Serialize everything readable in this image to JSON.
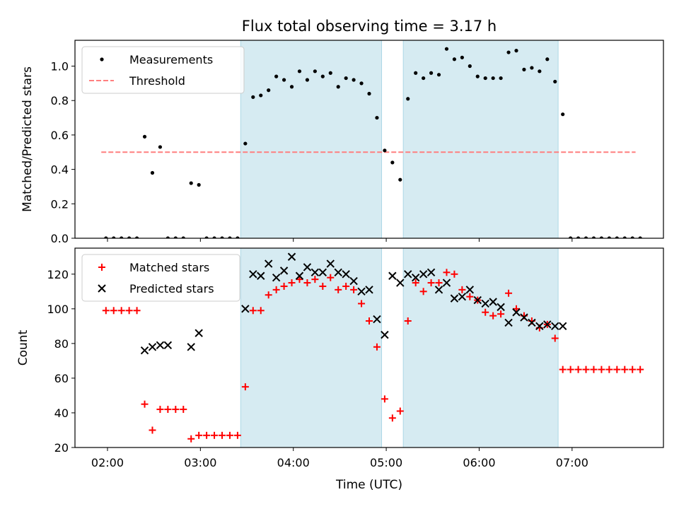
{
  "figure": {
    "title": "Flux total observing time = 3.17 h",
    "xlabel": "Time (UTC)",
    "x_ticks": [
      "02:00",
      "03:00",
      "04:00",
      "05:00",
      "06:00",
      "07:00"
    ]
  },
  "chart_data": [
    {
      "type": "scatter",
      "ylabel": "Matched/Predicted stars",
      "xlim": [
        "01:39",
        "07:59"
      ],
      "ylim": [
        0,
        1.15
      ],
      "y_ticks": [
        "0.0",
        "0.2",
        "0.4",
        "0.6",
        "0.8",
        "1.0"
      ],
      "legend_position": "top-left",
      "legend": [
        "Measurements",
        "Threshold"
      ],
      "shaded_intervals": [
        [
          "03:26",
          "04:57"
        ],
        [
          "05:11",
          "06:51"
        ]
      ],
      "threshold": {
        "name": "Threshold",
        "y": 0.5,
        "x_start": "01:56",
        "x_end": "07:41",
        "color": "#ff7f7f"
      },
      "series": [
        {
          "name": "Measurements",
          "color": "#000000",
          "x": [
            "01:59",
            "02:04",
            "02:09",
            "02:14",
            "02:19",
            "02:24",
            "02:29",
            "02:34",
            "02:39",
            "02:44",
            "02:49",
            "02:54",
            "02:59",
            "03:04",
            "03:09",
            "03:14",
            "03:19",
            "03:24",
            "03:29",
            "03:34",
            "03:39",
            "03:44",
            "03:49",
            "03:54",
            "03:59",
            "04:04",
            "04:09",
            "04:14",
            "04:19",
            "04:24",
            "04:29",
            "04:34",
            "04:39",
            "04:44",
            "04:49",
            "04:54",
            "04:59",
            "05:04",
            "05:09",
            "05:14",
            "05:19",
            "05:24",
            "05:29",
            "05:34",
            "05:39",
            "05:44",
            "05:49",
            "05:54",
            "05:59",
            "06:04",
            "06:09",
            "06:14",
            "06:19",
            "06:24",
            "06:29",
            "06:34",
            "06:39",
            "06:44",
            "06:49",
            "06:54",
            "06:59",
            "07:04",
            "07:09",
            "07:14",
            "07:19",
            "07:24",
            "07:29",
            "07:34",
            "07:39",
            "07:44"
          ],
          "y": [
            0.0,
            0.0,
            0.0,
            0.0,
            0.0,
            0.59,
            0.38,
            0.53,
            0.0,
            0.0,
            0.0,
            0.32,
            0.31,
            0.0,
            0.0,
            0.0,
            0.0,
            0.0,
            0.55,
            0.82,
            0.83,
            0.86,
            0.94,
            0.92,
            0.88,
            0.97,
            0.92,
            0.97,
            0.94,
            0.96,
            0.88,
            0.93,
            0.92,
            0.9,
            0.84,
            0.7,
            0.51,
            0.44,
            0.34,
            0.81,
            0.96,
            0.93,
            0.96,
            0.95,
            1.1,
            1.04,
            1.05,
            1.0,
            0.94,
            0.93,
            0.93,
            0.93,
            1.08,
            1.09,
            0.98,
            0.99,
            0.97,
            1.04,
            0.91,
            0.72,
            0.0,
            0.0,
            0.0,
            0.0,
            0.0,
            0.0,
            0.0,
            0.0,
            0.0,
            0.0
          ]
        }
      ]
    },
    {
      "type": "scatter",
      "ylabel": "Count",
      "xlim": [
        "01:39",
        "07:59"
      ],
      "ylim": [
        20,
        135
      ],
      "y_ticks": [
        "20",
        "40",
        "60",
        "80",
        "100",
        "120"
      ],
      "legend_position": "top-left",
      "legend": [
        "Matched stars",
        "Predicted stars"
      ],
      "shaded_intervals": [
        [
          "03:26",
          "04:57"
        ],
        [
          "05:11",
          "06:51"
        ]
      ],
      "series": [
        {
          "name": "Matched stars",
          "color": "#ff0000",
          "marker": "+",
          "x": [
            "01:59",
            "02:04",
            "02:09",
            "02:14",
            "02:19",
            "02:24",
            "02:29",
            "02:34",
            "02:39",
            "02:44",
            "02:49",
            "02:54",
            "02:59",
            "03:04",
            "03:09",
            "03:14",
            "03:19",
            "03:24",
            "03:29",
            "03:34",
            "03:39",
            "03:44",
            "03:49",
            "03:54",
            "03:59",
            "04:04",
            "04:09",
            "04:14",
            "04:19",
            "04:24",
            "04:29",
            "04:34",
            "04:39",
            "04:44",
            "04:49",
            "04:54",
            "04:59",
            "05:04",
            "05:09",
            "05:14",
            "05:19",
            "05:24",
            "05:29",
            "05:34",
            "05:39",
            "05:44",
            "05:49",
            "05:54",
            "05:59",
            "06:04",
            "06:09",
            "06:14",
            "06:19",
            "06:24",
            "06:29",
            "06:34",
            "06:39",
            "06:44",
            "06:49",
            "06:54",
            "06:59",
            "07:04",
            "07:09",
            "07:14",
            "07:19",
            "07:24",
            "07:29",
            "07:34",
            "07:39",
            "07:44"
          ],
          "y": [
            99,
            99,
            99,
            99,
            99,
            45,
            30,
            42,
            42,
            42,
            42,
            25,
            27,
            27,
            27,
            27,
            27,
            27,
            55,
            99,
            99,
            108,
            111,
            113,
            115,
            117,
            115,
            117,
            113,
            118,
            111,
            113,
            111,
            103,
            93,
            78,
            48,
            37,
            41,
            93,
            115,
            110,
            115,
            115,
            121,
            120,
            111,
            107,
            105,
            98,
            96,
            97,
            109,
            100,
            96,
            93,
            89,
            91,
            83,
            65,
            65,
            65,
            65,
            65,
            65,
            65,
            65,
            65,
            65,
            65
          ]
        },
        {
          "name": "Predicted stars",
          "color": "#000000",
          "marker": "x",
          "x": [
            "02:24",
            "02:29",
            "02:34",
            "02:39",
            "02:54",
            "02:59",
            "03:29",
            "03:34",
            "03:39",
            "03:44",
            "03:49",
            "03:54",
            "03:59",
            "04:04",
            "04:09",
            "04:14",
            "04:19",
            "04:24",
            "04:29",
            "04:34",
            "04:39",
            "04:44",
            "04:49",
            "04:54",
            "04:59",
            "05:04",
            "05:09",
            "05:14",
            "05:19",
            "05:24",
            "05:29",
            "05:34",
            "05:39",
            "05:44",
            "05:49",
            "05:54",
            "05:59",
            "06:04",
            "06:09",
            "06:14",
            "06:19",
            "06:24",
            "06:29",
            "06:34",
            "06:39",
            "06:44",
            "06:49",
            "06:54"
          ],
          "y": [
            76,
            78,
            79,
            79,
            78,
            86,
            100,
            120,
            119,
            126,
            118,
            122,
            130,
            119,
            124,
            121,
            121,
            126,
            121,
            120,
            116,
            110,
            111,
            94,
            85,
            119,
            115,
            120,
            118,
            120,
            121,
            111,
            115,
            106,
            107,
            111,
            105,
            103,
            104,
            101,
            92,
            98,
            95,
            92,
            90,
            91,
            90,
            90
          ]
        }
      ]
    }
  ]
}
